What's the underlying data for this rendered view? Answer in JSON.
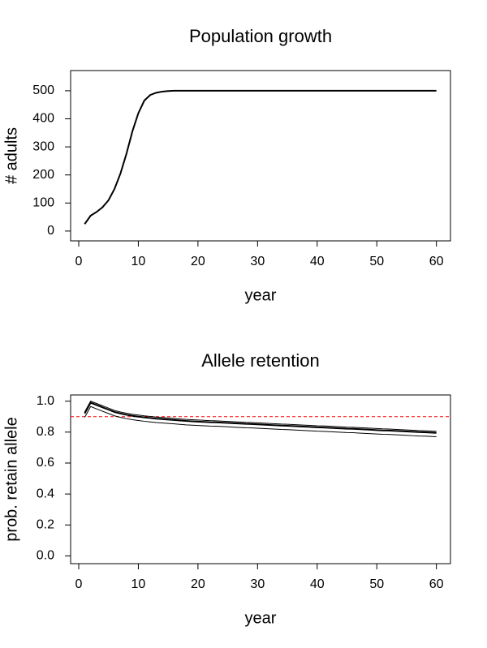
{
  "chart_data": [
    {
      "type": "line",
      "title": "Population growth",
      "xlabel": "year",
      "ylabel": "# adults",
      "x": [
        1,
        2,
        3,
        4,
        5,
        6,
        7,
        8,
        9,
        10,
        11,
        12,
        13,
        14,
        15,
        16,
        17,
        18,
        19,
        20,
        21,
        22,
        23,
        24,
        25,
        26,
        27,
        28,
        29,
        30,
        31,
        32,
        33,
        34,
        35,
        36,
        37,
        38,
        39,
        40,
        41,
        42,
        43,
        44,
        45,
        46,
        47,
        48,
        49,
        50,
        51,
        52,
        53,
        54,
        55,
        56,
        57,
        58,
        59,
        60
      ],
      "series": [
        {
          "color": "#000000",
          "values": [
            25,
            55,
            68,
            85,
            110,
            150,
            205,
            275,
            355,
            420,
            465,
            485,
            493,
            497,
            499,
            500,
            500,
            500,
            500,
            500,
            500,
            500,
            500,
            500,
            500,
            500,
            500,
            500,
            500,
            500,
            500,
            500,
            500,
            500,
            500,
            500,
            500,
            500,
            500,
            500,
            500,
            500,
            500,
            500,
            500,
            500,
            500,
            500,
            500,
            500,
            500,
            500,
            500,
            500,
            500,
            500,
            500,
            500,
            500,
            500
          ]
        }
      ],
      "xlim": [
        -1.36,
        62.36
      ],
      "xticks": [
        0,
        10,
        20,
        30,
        40,
        50,
        60
      ],
      "ylim": [
        -35,
        572
      ],
      "yticks": [
        0,
        100,
        200,
        300,
        400,
        500
      ]
    },
    {
      "type": "line",
      "title": "Allele retention",
      "xlabel": "year",
      "ylabel": "prob. retain allele",
      "x": [
        1,
        2,
        3,
        4,
        5,
        6,
        7,
        8,
        9,
        10,
        11,
        12,
        13,
        14,
        15,
        16,
        17,
        18,
        19,
        20,
        21,
        22,
        23,
        24,
        25,
        26,
        27,
        28,
        29,
        30,
        31,
        32,
        33,
        34,
        35,
        36,
        37,
        38,
        39,
        40,
        41,
        42,
        43,
        44,
        45,
        46,
        47,
        48,
        49,
        50,
        51,
        52,
        53,
        54,
        55,
        56,
        57,
        58,
        59,
        60
      ],
      "series": [
        {
          "color": "#000000",
          "values": [
            0.92,
            0.99,
            0.975,
            0.96,
            0.945,
            0.93,
            0.92,
            0.912,
            0.905,
            0.9,
            0.895,
            0.891,
            0.887,
            0.884,
            0.881,
            0.878,
            0.875,
            0.872,
            0.87,
            0.868,
            0.866,
            0.864,
            0.863,
            0.861,
            0.859,
            0.857,
            0.855,
            0.853,
            0.852,
            0.85,
            0.848,
            0.846,
            0.844,
            0.842,
            0.841,
            0.839,
            0.837,
            0.835,
            0.833,
            0.831,
            0.83,
            0.828,
            0.826,
            0.824,
            0.822,
            0.821,
            0.819,
            0.817,
            0.815,
            0.813,
            0.811,
            0.81,
            0.808,
            0.806,
            0.804,
            0.802,
            0.8,
            0.799,
            0.797,
            0.795
          ]
        },
        {
          "color": "#000000",
          "values": [
            0.93,
            1.0,
            0.985,
            0.97,
            0.955,
            0.94,
            0.93,
            0.922,
            0.915,
            0.91,
            0.905,
            0.901,
            0.897,
            0.894,
            0.891,
            0.888,
            0.885,
            0.882,
            0.88,
            0.878,
            0.876,
            0.874,
            0.873,
            0.871,
            0.869,
            0.867,
            0.865,
            0.863,
            0.862,
            0.86,
            0.858,
            0.856,
            0.854,
            0.852,
            0.851,
            0.849,
            0.847,
            0.845,
            0.843,
            0.841,
            0.84,
            0.838,
            0.836,
            0.834,
            0.832,
            0.831,
            0.829,
            0.827,
            0.825,
            0.823,
            0.821,
            0.82,
            0.818,
            0.816,
            0.814,
            0.812,
            0.81,
            0.809,
            0.807,
            0.805
          ]
        },
        {
          "color": "#000000",
          "values": [
            0.895,
            0.965,
            0.95,
            0.935,
            0.92,
            0.905,
            0.895,
            0.887,
            0.88,
            0.875,
            0.87,
            0.866,
            0.862,
            0.859,
            0.856,
            0.853,
            0.85,
            0.847,
            0.845,
            0.843,
            0.841,
            0.839,
            0.838,
            0.836,
            0.834,
            0.832,
            0.83,
            0.828,
            0.827,
            0.825,
            0.823,
            0.821,
            0.819,
            0.817,
            0.816,
            0.814,
            0.812,
            0.81,
            0.808,
            0.806,
            0.805,
            0.803,
            0.801,
            0.799,
            0.797,
            0.796,
            0.794,
            0.792,
            0.79,
            0.788,
            0.786,
            0.785,
            0.783,
            0.781,
            0.779,
            0.777,
            0.775,
            0.774,
            0.772,
            0.77
          ]
        }
      ],
      "hline": {
        "value": 0.9,
        "color": "#ff0000",
        "style": "dashed"
      },
      "xlim": [
        -1.36,
        62.36
      ],
      "xticks": [
        0,
        10,
        20,
        30,
        40,
        50,
        60
      ],
      "ylim": [
        -0.05,
        1.04
      ],
      "yticks": [
        {
          "value": 0,
          "label": "0.0"
        },
        0.2,
        0.4,
        0.6,
        0.8,
        {
          "value": 1,
          "label": "1.0"
        }
      ]
    }
  ]
}
